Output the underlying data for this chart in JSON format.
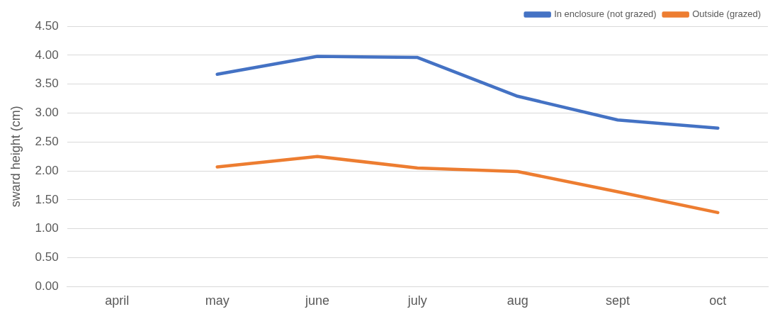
{
  "chart_data": {
    "type": "line",
    "ylabel": "sward height (cm)",
    "categories": [
      "april",
      "may",
      "june",
      "july",
      "aug",
      "sept",
      "oct"
    ],
    "series": [
      {
        "name": "In enclosure (not grazed)",
        "color": "#4472c4",
        "values": [
          null,
          3.67,
          3.98,
          3.96,
          3.29,
          2.88,
          2.74
        ]
      },
      {
        "name": "Outside (grazed)",
        "color": "#ed7d31",
        "values": [
          null,
          2.07,
          2.25,
          2.05,
          1.99,
          1.64,
          1.28
        ]
      }
    ],
    "ylim": [
      0,
      4.5
    ],
    "yticks": [
      {
        "value": 0,
        "label": "0.00"
      },
      {
        "value": 0.5,
        "label": "0.50"
      },
      {
        "value": 1,
        "label": "1.00"
      },
      {
        "value": 1.5,
        "label": "1.50"
      },
      {
        "value": 2,
        "label": "2.00"
      },
      {
        "value": 2.5,
        "label": "2.50"
      },
      {
        "value": 3,
        "label": "3.00"
      },
      {
        "value": 3.5,
        "label": "3.50"
      },
      {
        "value": 4,
        "label": "4.00"
      },
      {
        "value": 4.5,
        "label": "4.50"
      }
    ],
    "grid": "y",
    "legend": "top right",
    "marker": "none",
    "line_style": "solid"
  }
}
